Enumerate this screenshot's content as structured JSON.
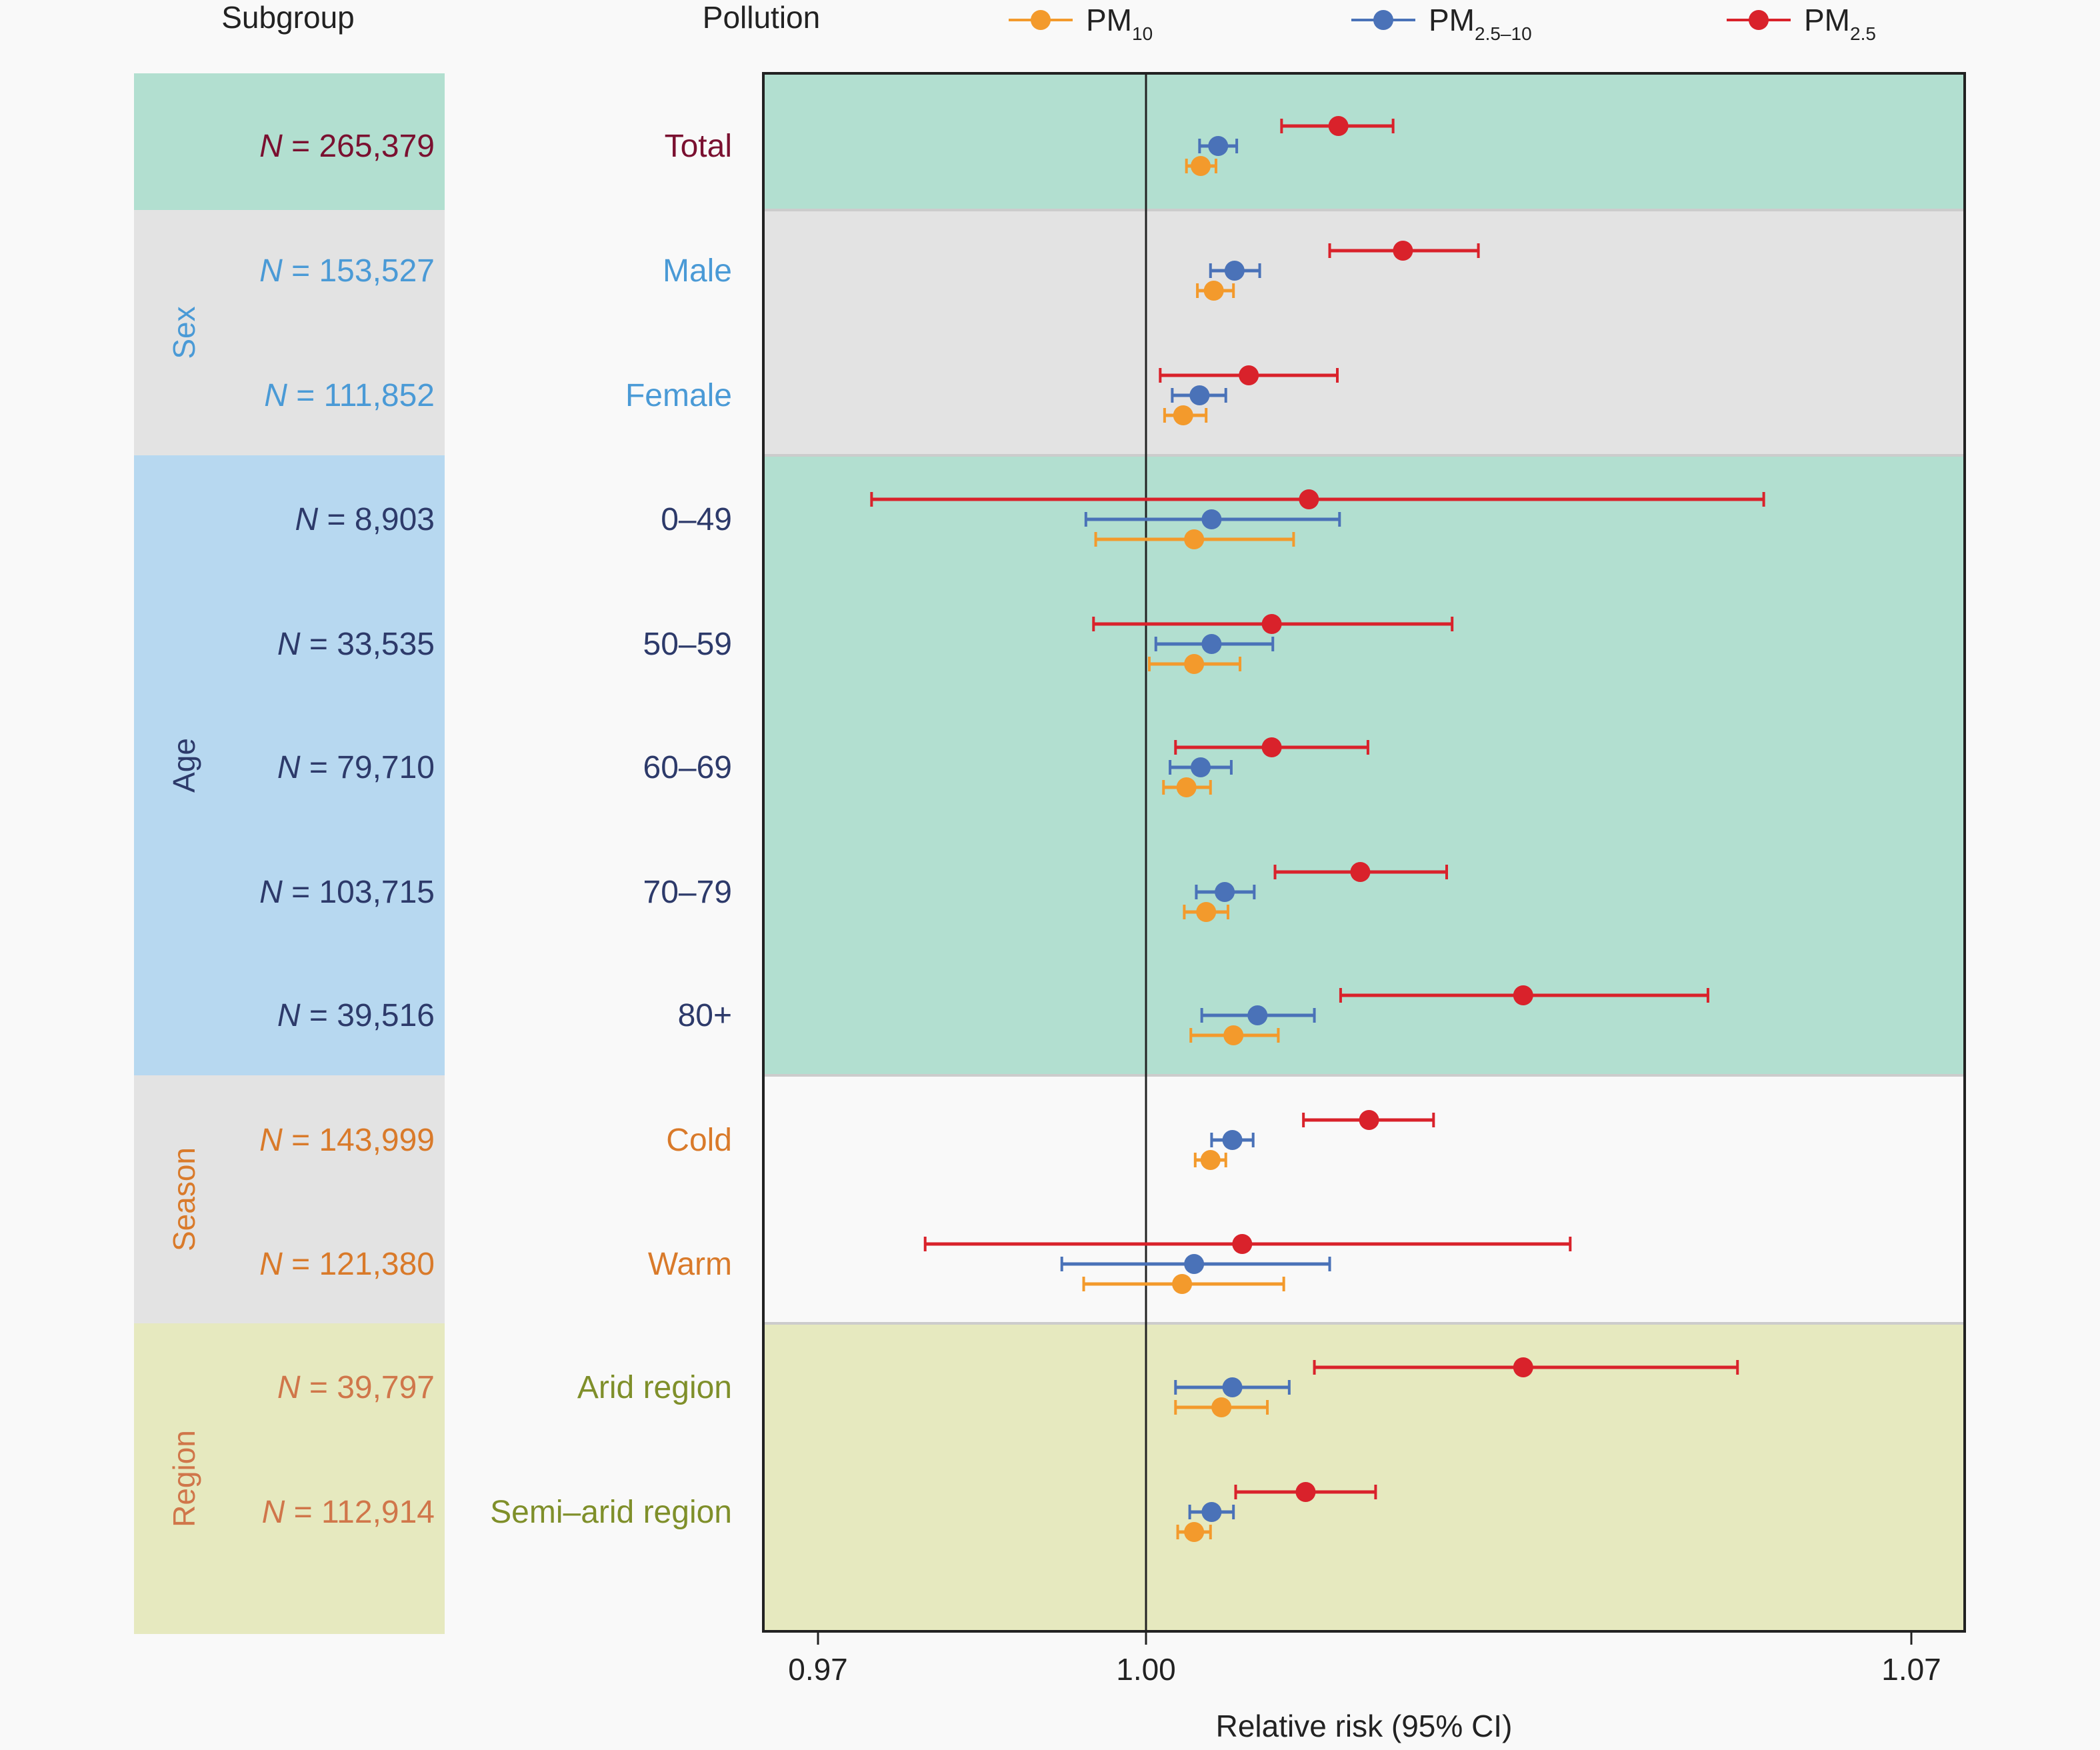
{
  "chart_data": {
    "type": "forest",
    "title": "",
    "headers": {
      "subgroup": "Subgroup",
      "pollution": "Pollution"
    },
    "xlabel": "Relative risk (95% CI)",
    "xlim": [
      0.965,
      1.0715
    ],
    "xticks": [
      0.97,
      1.0,
      1.07
    ],
    "xtick_labels": [
      "0.97",
      "1.00",
      "1.07"
    ],
    "reference_line": 1.0,
    "legend_position": "top",
    "series": [
      {
        "key": "pm25",
        "name": "PM",
        "sub": "2.5",
        "color": "#d9222b"
      },
      {
        "key": "pm2510",
        "name": "PM",
        "sub": "2.5–10",
        "color": "#4a72b8"
      },
      {
        "key": "pm10",
        "name": "PM",
        "sub": "10",
        "color": "#f39a2c"
      }
    ],
    "groups": [
      {
        "name": "",
        "bg": "#b2dfd0",
        "plot_bg": "#b2dfd0",
        "label_color": "#7a1030",
        "rows": [
          0
        ]
      },
      {
        "name": "Sex",
        "bg": "#e3e3e3",
        "plot_bg": "#e3e3e3",
        "label_color": "#4a9ad6",
        "rows": [
          1,
          2
        ]
      },
      {
        "name": "Age",
        "bg": "#b7d8f0",
        "plot_bg": "#b2dfd0",
        "label_color": "#2d3a6a",
        "rows": [
          3,
          4,
          5,
          6,
          7
        ]
      },
      {
        "name": "Season",
        "bg": "#e3e3e3",
        "plot_bg": "#f9f9f9",
        "label_color": "#d97a2a",
        "rows": [
          8,
          9
        ]
      },
      {
        "name": "Region",
        "bg": "#e6e9bf",
        "plot_bg": "#e6e9bf",
        "label_color": "#d0764a",
        "rows": [
          10,
          11
        ]
      }
    ],
    "rows": [
      {
        "n": "265,379",
        "label": "Total",
        "n_color": "#7a1030",
        "label_color": "#7a1030",
        "pm25": [
          1.0176,
          1.0124,
          1.0226
        ],
        "pm2510": [
          1.0066,
          1.0049,
          1.0083
        ],
        "pm10": [
          1.005,
          1.0037,
          1.0064
        ]
      },
      {
        "n": "153,527",
        "label": "Male",
        "n_color": "#4a9ad6",
        "label_color": "#4a9ad6",
        "pm25": [
          1.0235,
          1.0168,
          1.0304
        ],
        "pm2510": [
          1.0081,
          1.0059,
          1.0104
        ],
        "pm10": [
          1.0062,
          1.0047,
          1.008
        ]
      },
      {
        "n": "111,852",
        "label": "Female",
        "n_color": "#4a9ad6",
        "label_color": "#4a9ad6",
        "pm25": [
          1.0094,
          1.0013,
          1.0175
        ],
        "pm2510": [
          1.0049,
          1.0024,
          1.0073
        ],
        "pm10": [
          1.0034,
          1.0017,
          1.0055
        ]
      },
      {
        "n": "8,903",
        "label": "0–49",
        "n_color": "#2d3a6a",
        "label_color": "#2d3a6a",
        "pm25": [
          1.0149,
          0.9749,
          1.0565
        ],
        "pm2510": [
          1.006,
          0.9945,
          1.0177
        ],
        "pm10": [
          1.0044,
          0.9954,
          1.0135
        ]
      },
      {
        "n": "33,535",
        "label": "50–59",
        "n_color": "#2d3a6a",
        "label_color": "#2d3a6a",
        "pm25": [
          1.0115,
          0.9952,
          1.028
        ],
        "pm2510": [
          1.006,
          1.0009,
          1.0116
        ],
        "pm10": [
          1.0044,
          1.0003,
          1.0086
        ]
      },
      {
        "n": "79,710",
        "label": "60–69",
        "n_color": "#2d3a6a",
        "label_color": "#2d3a6a",
        "pm25": [
          1.0115,
          1.0027,
          1.0203
        ],
        "pm2510": [
          1.005,
          1.0022,
          1.0078
        ],
        "pm10": [
          1.0037,
          1.0016,
          1.0059
        ]
      },
      {
        "n": "103,715",
        "label": "70–79",
        "n_color": "#2d3a6a",
        "label_color": "#2d3a6a",
        "pm25": [
          1.0196,
          1.0118,
          1.0275
        ],
        "pm2510": [
          1.0072,
          1.0046,
          1.0099
        ],
        "pm10": [
          1.0055,
          1.0035,
          1.0075
        ]
      },
      {
        "n": "39,516",
        "label": "80+",
        "n_color": "#2d3a6a",
        "label_color": "#2d3a6a",
        "pm25": [
          1.0345,
          1.0178,
          1.0514
        ],
        "pm2510": [
          1.0102,
          1.0051,
          1.0154
        ],
        "pm10": [
          1.008,
          1.0041,
          1.0121
        ]
      },
      {
        "n": "143,999",
        "label": "Cold",
        "n_color": "#d97a2a",
        "label_color": "#d97a2a",
        "pm25": [
          1.0204,
          1.0144,
          1.0263
        ],
        "pm2510": [
          1.0079,
          1.006,
          1.0098
        ],
        "pm10": [
          1.0059,
          1.0045,
          1.0073
        ]
      },
      {
        "n": "121,380",
        "label": "Warm",
        "n_color": "#d97a2a",
        "label_color": "#d97a2a",
        "pm25": [
          1.0088,
          0.9798,
          1.0388
        ],
        "pm2510": [
          1.0044,
          0.9923,
          1.0168
        ],
        "pm10": [
          1.0033,
          0.9943,
          1.0126
        ]
      },
      {
        "n": "39,797",
        "label": "Arid region",
        "n_color": "#d0764a",
        "label_color": "#7f8f2a",
        "pm25": [
          1.0345,
          1.0154,
          1.0541
        ],
        "pm2510": [
          1.0079,
          1.0027,
          1.0131
        ],
        "pm10": [
          1.0069,
          1.0027,
          1.0111
        ]
      },
      {
        "n": "112,914",
        "label": "Semi–arid region",
        "n_color": "#d0764a",
        "label_color": "#7f8f2a",
        "pm25": [
          1.0146,
          1.0082,
          1.021
        ],
        "pm2510": [
          1.006,
          1.004,
          1.008
        ],
        "pm10": [
          1.0044,
          1.0029,
          1.0059
        ]
      }
    ]
  }
}
